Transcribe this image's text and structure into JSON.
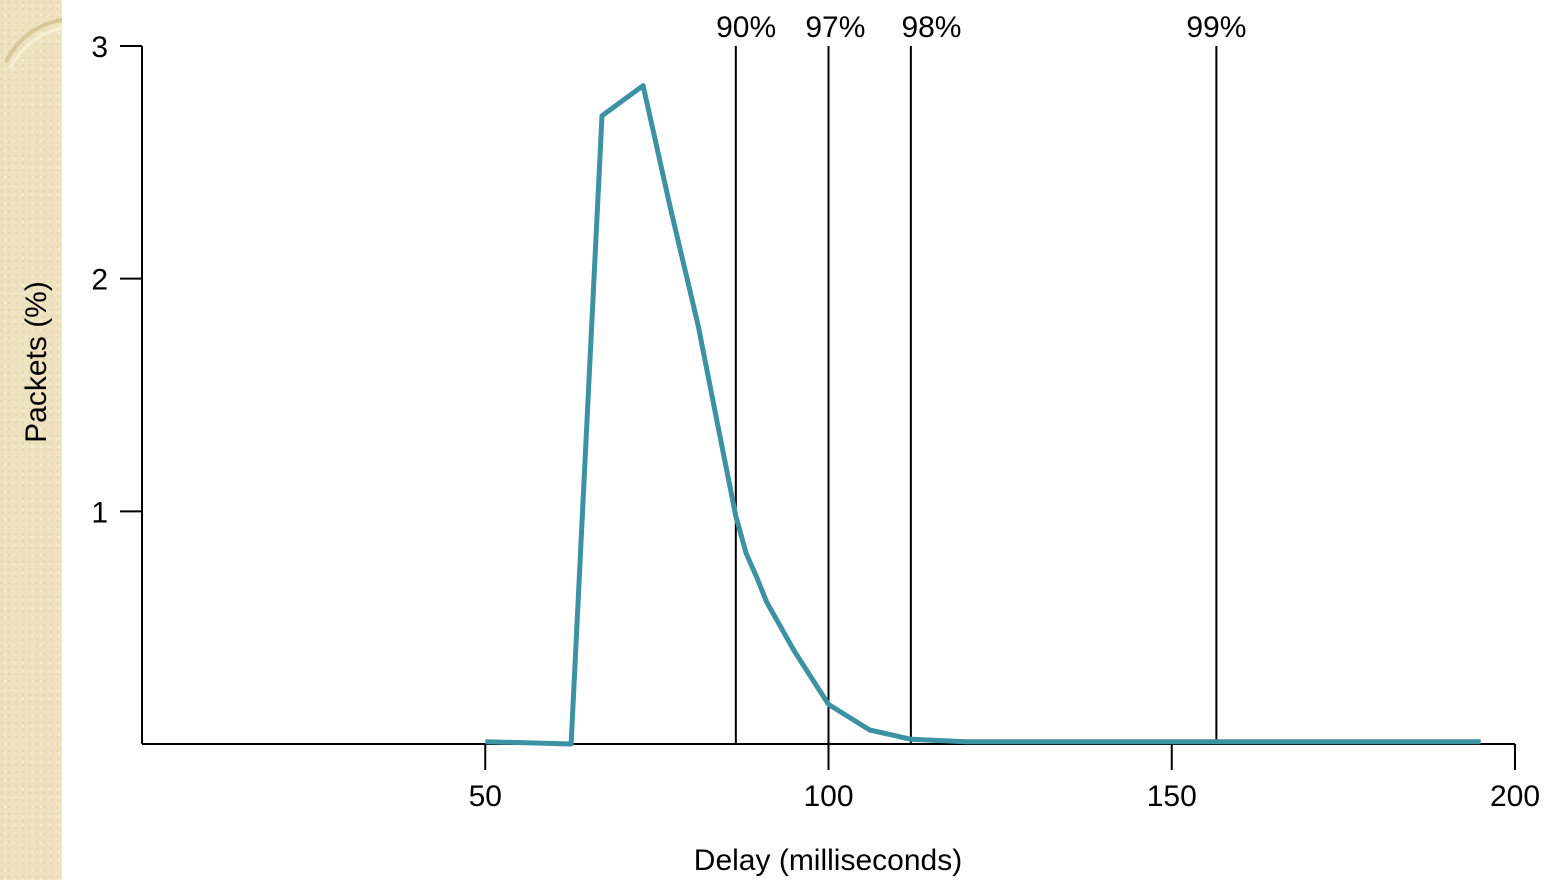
{
  "chart_data": {
    "type": "line",
    "title": "",
    "xlabel": "Delay (milliseconds)",
    "ylabel": "Packets (%)",
    "xlim": [
      0,
      200
    ],
    "ylim": [
      0,
      3
    ],
    "x_ticks": [
      50,
      100,
      150,
      200
    ],
    "y_ticks": [
      1,
      2,
      3
    ],
    "series": [
      {
        "color": "#3c92a2",
        "points": [
          [
            50,
            0.01
          ],
          [
            62.5,
            0.0
          ],
          [
            67,
            2.7
          ],
          [
            73,
            2.83
          ],
          [
            77,
            2.3
          ],
          [
            81,
            1.8
          ],
          [
            84,
            1.35
          ],
          [
            86.5,
            0.98
          ],
          [
            88,
            0.82
          ],
          [
            89.5,
            0.72
          ],
          [
            91,
            0.61
          ],
          [
            95,
            0.4
          ],
          [
            100,
            0.17
          ],
          [
            106,
            0.06
          ],
          [
            112,
            0.02
          ],
          [
            120,
            0.01
          ],
          [
            150,
            0.01
          ],
          [
            180,
            0.01
          ],
          [
            195,
            0.01
          ]
        ]
      }
    ],
    "markers": [
      {
        "x": 86.5,
        "label": "90%",
        "label_x": 88
      },
      {
        "x": 100,
        "label": "97%",
        "label_x": 101
      },
      {
        "x": 112,
        "label": "98%",
        "label_x": 115
      },
      {
        "x": 156.5,
        "label": "99%",
        "label_x": 156.5
      }
    ]
  }
}
